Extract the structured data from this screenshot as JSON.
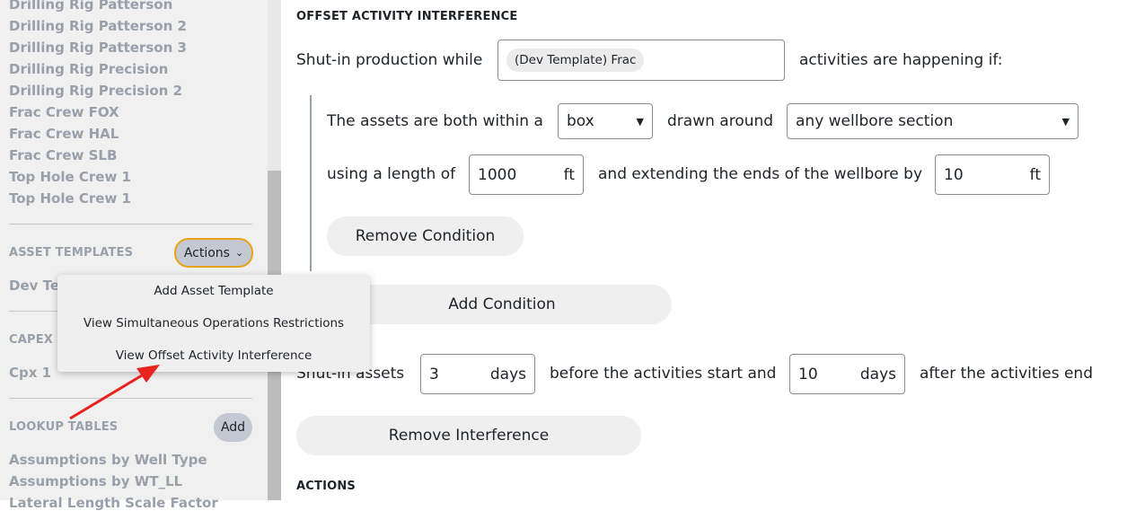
{
  "sidebar": {
    "rigs": [
      "Drilling Rig Patterson",
      "Drilling Rig Patterson 2",
      "Drilling Rig Patterson 3",
      "Drilling Rig Precision",
      "Drilling Rig Precision 2",
      "Frac Crew FOX",
      "Frac Crew HAL",
      "Frac Crew SLB",
      "Top Hole Crew 1",
      "Top Hole Crew 1"
    ],
    "asset_templates": {
      "title": "ASSET TEMPLATES",
      "actions_label": "Actions",
      "item": "Dev Template"
    },
    "capex": {
      "title": "CAPEX I",
      "item": "Cpx 1"
    },
    "lookup": {
      "title": "LOOKUP TABLES",
      "add_label": "Add",
      "items": [
        "Assumptions by Well Type",
        "Assumptions by WT_LL",
        "Lateral Length Scale Factor"
      ]
    }
  },
  "menu": {
    "items": [
      "Add Asset Template",
      "View Simultaneous Operations Restrictions",
      "View Offset Activity Interference"
    ]
  },
  "main": {
    "title": "OFFSET ACTIVITY INTERFERENCE",
    "shut_in_prefix": "Shut-in production while",
    "activity_tag": "(Dev Template) Frac",
    "shut_in_suffix": "activities are happening if:",
    "cond_prefix": "The assets are both within a",
    "shape_value": "box",
    "drawn_around": "drawn around",
    "section_value": "any wellbore section",
    "using_length": "using a length of",
    "length_value": "1000",
    "length_unit": "ft",
    "extending": "and extending the ends of the wellbore by",
    "extend_value": "10",
    "extend_unit": "ft",
    "remove_condition": "Remove Condition",
    "add_condition": "Add Condition",
    "shutin_assets": "Shut-in assets",
    "before_value": "3",
    "before_unit": "days",
    "before_text": "before the activities start and",
    "after_value": "10",
    "after_unit": "days",
    "after_text": "after the activities end",
    "remove_interference": "Remove Interference",
    "actions_title": "ACTIONS"
  },
  "colors": {
    "accent_outline": "#e8a317",
    "annotation_arrow": "#e8231f"
  }
}
